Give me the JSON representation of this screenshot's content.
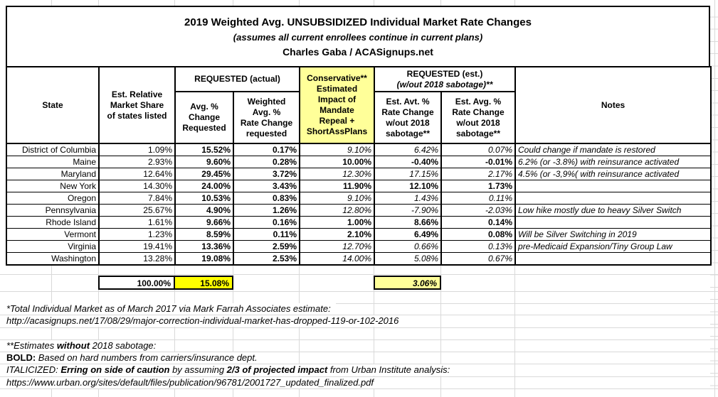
{
  "title": {
    "line1": "2019 Weighted Avg. UNSUBSIDIZED Individual Market Rate Changes",
    "line2": "(assumes all current enrollees continue in current plans)",
    "line3": "Charles Gaba / ACASignups.net"
  },
  "colors": {
    "highlight_yellow": "#ffff00",
    "pale_yellow": "#ffff99"
  },
  "table": {
    "headers": {
      "state": "State",
      "market_share": "Est. Relative\nMarket Share\nof states listed",
      "requested_actual": "REQUESTED (actual)",
      "avg_change": "Avg. %\nChange\nRequested",
      "weighted_avg": "Weighted\nAvg. %\nRate Change\nrequested",
      "conservative": "Conservative**\nEstimated\nImpact of\nMandate\nRepeal +\nShortAssPlans",
      "requested_est_line1": "REQUESTED (est.)",
      "requested_est_line2": "(w/out 2018 sabotage)**",
      "est_avt": "Est. Avt. %\nRate Change\nw/out 2018\nsabotage**",
      "est_avg": "Est. Avg. %\nRate Change\nw/out 2018\nsabotage**",
      "notes": "Notes"
    },
    "rows": [
      {
        "state": "District of Columbia",
        "market_share": "1.09%",
        "avg_change": "15.52%",
        "weighted_avg": "0.17%",
        "conservative": "9.10%",
        "est_avt": "6.42%",
        "est_avg": "0.07%",
        "estimated": true,
        "note": "Could change if mandate is restored"
      },
      {
        "state": "Maine",
        "market_share": "2.93%",
        "avg_change": "9.60%",
        "weighted_avg": "0.28%",
        "conservative": "10.00%",
        "est_avt": "-0.40%",
        "est_avg": "-0.01%",
        "estimated": false,
        "note": "6.2% (or -3.8%) with reinsurance activated"
      },
      {
        "state": "Maryland",
        "market_share": "12.64%",
        "avg_change": "29.45%",
        "weighted_avg": "3.72%",
        "conservative": "12.30%",
        "est_avt": "17.15%",
        "est_avg": "2.17%",
        "estimated": true,
        "note": "4.5% (or -3,9%( with reinsurance activated"
      },
      {
        "state": "New York",
        "market_share": "14.30%",
        "avg_change": "24.00%",
        "weighted_avg": "3.43%",
        "conservative": "11.90%",
        "est_avt": "12.10%",
        "est_avg": "1.73%",
        "estimated": false,
        "note": ""
      },
      {
        "state": "Oregon",
        "market_share": "7.84%",
        "avg_change": "10.53%",
        "weighted_avg": "0.83%",
        "conservative": "9.10%",
        "est_avt": "1.43%",
        "est_avg": "0.11%",
        "estimated": true,
        "note": ""
      },
      {
        "state": "Pennsylvania",
        "market_share": "25.67%",
        "avg_change": "4.90%",
        "weighted_avg": "1.26%",
        "conservative": "12.80%",
        "est_avt": "-7.90%",
        "est_avg": "-2.03%",
        "estimated": true,
        "note": "Low hike mostly due to heavy Silver Switch"
      },
      {
        "state": "Rhode Island",
        "market_share": "1.61%",
        "avg_change": "9.66%",
        "weighted_avg": "0.16%",
        "conservative": "1.00%",
        "est_avt": "8.66%",
        "est_avg": "0.14%",
        "estimated": false,
        "note": ""
      },
      {
        "state": "Vermont",
        "market_share": "1.23%",
        "avg_change": "8.59%",
        "weighted_avg": "0.11%",
        "conservative": "2.10%",
        "est_avt": "6.49%",
        "est_avg": "0.08%",
        "estimated": false,
        "note": "Will be Silver Switching in 2019"
      },
      {
        "state": "Virginia",
        "market_share": "19.41%",
        "avg_change": "13.36%",
        "weighted_avg": "2.59%",
        "conservative": "12.70%",
        "est_avt": "0.66%",
        "est_avg": "0.13%",
        "estimated": true,
        "note": "pre-Medicaid Expansion/Tiny Group Law"
      },
      {
        "state": "Washington",
        "market_share": "13.28%",
        "avg_change": "19.08%",
        "weighted_avg": "2.53%",
        "conservative": "14.00%",
        "est_avt": "5.08%",
        "est_avg": "0.67%",
        "estimated": true,
        "note": ""
      }
    ],
    "totals": {
      "market_share": "100.00%",
      "avg_change": "15.08%",
      "est_avt": "3.06%"
    }
  },
  "footer": {
    "lines": [
      [
        {
          "t": "*Total Individual Market as of March 2017 via Mark Farrah Associates estimate:",
          "i": true
        }
      ],
      [
        {
          "t": "http://acasignups.net/17/08/29/major-correction-individual-market-has-dropped-119-or-102-2016",
          "i": true
        }
      ],
      [],
      [
        {
          "t": "**Estimates ",
          "i": true
        },
        {
          "t": "without",
          "i": true,
          "b": true
        },
        {
          "t": " 2018 sabotage:",
          "i": true
        }
      ],
      [
        {
          "t": "BOLD",
          "b": true
        },
        {
          "t": ": ",
          "b": true
        },
        {
          "t": "Based on hard numbers from carriers/insurance dept.",
          "i": true
        }
      ],
      [
        {
          "t": "ITALICIZED: ",
          "i": true
        },
        {
          "t": "Erring on side of caution",
          "i": true,
          "b": true
        },
        {
          "t": " by assuming ",
          "i": true
        },
        {
          "t": "2/3 of projected impact",
          "i": true,
          "b": true
        },
        {
          "t": " from Urban Institute analysis:",
          "i": true
        }
      ],
      [
        {
          "t": "https://www.urban.org/sites/default/files/publication/96781/2001727_updated_finalized.pdf",
          "i": true
        }
      ]
    ]
  }
}
